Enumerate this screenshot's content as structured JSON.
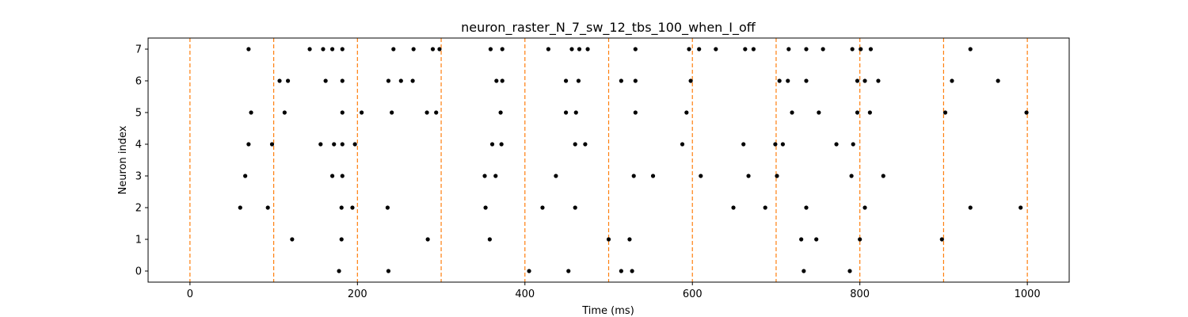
{
  "chart_data": {
    "type": "scatter",
    "title": "neuron_raster_N_7_sw_12_tbs_100_when_I_off",
    "xlabel": "Time (ms)",
    "ylabel": "Neuron index",
    "xlim": [
      -50,
      1050
    ],
    "ylim": [
      -0.35,
      7.35
    ],
    "xticks": [
      0,
      200,
      400,
      600,
      800,
      1000
    ],
    "yticks": [
      0,
      1,
      2,
      3,
      4,
      5,
      6,
      7
    ],
    "grid": false,
    "marker_color": "#000000",
    "vline_color": "#ff7f0e",
    "vlines": [
      0,
      100,
      200,
      300,
      400,
      500,
      600,
      700,
      800,
      900,
      1000
    ],
    "series": [
      {
        "neuron": 0,
        "x": [
          178,
          237,
          405,
          452,
          515,
          528,
          733,
          788
        ]
      },
      {
        "neuron": 1,
        "x": [
          122,
          181,
          284,
          358,
          500,
          525,
          730,
          748,
          800,
          898
        ]
      },
      {
        "neuron": 2,
        "x": [
          60,
          93,
          181,
          194,
          236,
          353,
          421,
          460,
          649,
          687,
          736,
          806,
          932,
          992
        ]
      },
      {
        "neuron": 3,
        "x": [
          66,
          170,
          182,
          352,
          365,
          437,
          530,
          553,
          610,
          667,
          701,
          790,
          828
        ]
      },
      {
        "neuron": 4,
        "x": [
          70,
          98,
          156,
          172,
          182,
          197,
          361,
          372,
          460,
          472,
          588,
          661,
          699,
          708,
          772,
          792
        ]
      },
      {
        "neuron": 5,
        "x": [
          73,
          113,
          182,
          205,
          241,
          283,
          294,
          371,
          449,
          461,
          532,
          593,
          719,
          751,
          797,
          812,
          902,
          999
        ]
      },
      {
        "neuron": 6,
        "x": [
          107,
          117,
          162,
          182,
          237,
          252,
          266,
          366,
          373,
          449,
          464,
          515,
          532,
          598,
          704,
          714,
          736,
          797,
          806,
          822,
          910,
          965
        ]
      },
      {
        "neuron": 7,
        "x": [
          70,
          143,
          159,
          170,
          182,
          243,
          267,
          290,
          298,
          359,
          373,
          428,
          456,
          465,
          475,
          532,
          596,
          608,
          628,
          663,
          673,
          715,
          736,
          756,
          791,
          801,
          813,
          932
        ]
      }
    ]
  }
}
